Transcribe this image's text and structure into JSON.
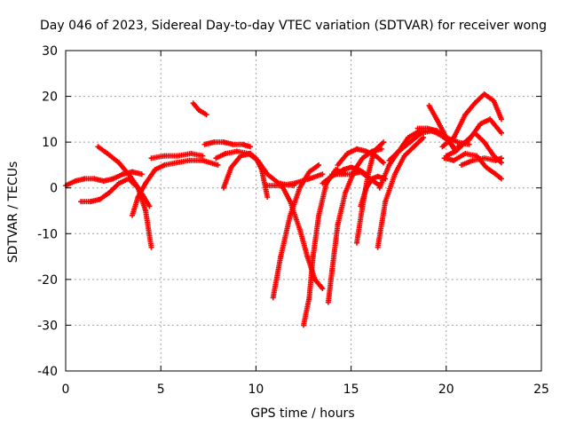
{
  "chart_data": {
    "type": "scatter",
    "title": "Day 046 of 2023, Sidereal Day-to-day VTEC variation (SDTVAR) for receiver wong",
    "xlabel": "GPS time / hours",
    "ylabel": "SDTVAR / TECUs",
    "xlim": [
      0,
      25
    ],
    "ylim": [
      -40,
      30
    ],
    "xticks": [
      0,
      5,
      10,
      15,
      20,
      25
    ],
    "yticks": [
      -40,
      -30,
      -20,
      -10,
      0,
      10,
      20,
      30
    ],
    "grid": true,
    "marker": "+",
    "color": "#ff0000",
    "series": [
      {
        "name": "s1",
        "x": [
          0.0,
          0.5,
          1.0,
          1.5,
          2.0,
          2.5,
          3.0,
          3.5,
          4.0
        ],
        "y": [
          0.5,
          1.5,
          2.0,
          2.0,
          1.5,
          2.0,
          3.0,
          3.5,
          3.0
        ]
      },
      {
        "name": "s2",
        "x": [
          0.8,
          1.3,
          1.8,
          2.3,
          2.8,
          3.3,
          3.8,
          4.2,
          4.5
        ],
        "y": [
          -3.0,
          -3.0,
          -2.5,
          -1.0,
          1.0,
          2.0,
          0.0,
          -5.0,
          -13.0
        ]
      },
      {
        "name": "s3",
        "x": [
          1.7,
          2.2,
          2.8,
          3.4,
          3.9,
          4.4
        ],
        "y": [
          9.0,
          7.5,
          5.5,
          2.5,
          -0.5,
          -4.0
        ]
      },
      {
        "name": "s4",
        "x": [
          3.5,
          3.8,
          4.2,
          4.7,
          5.2,
          5.8,
          6.5,
          7.2,
          8.0
        ],
        "y": [
          -6.0,
          -2.0,
          1.0,
          4.0,
          5.0,
          5.5,
          6.0,
          6.0,
          5.0
        ]
      },
      {
        "name": "s5",
        "x": [
          4.5,
          5.2,
          5.9,
          6.6,
          7.2
        ],
        "y": [
          6.5,
          7.0,
          7.0,
          7.5,
          7.0
        ]
      },
      {
        "name": "s6",
        "x": [
          6.7,
          7.0,
          7.4
        ],
        "y": [
          18.5,
          17.0,
          16.0
        ]
      },
      {
        "name": "s7",
        "x": [
          7.3,
          7.8,
          8.3,
          8.8,
          9.3,
          9.7
        ],
        "y": [
          9.5,
          10.0,
          10.0,
          9.5,
          9.5,
          9.0
        ]
      },
      {
        "name": "s8",
        "x": [
          8.3,
          8.7,
          9.2,
          9.7,
          10.0,
          10.3,
          10.6
        ],
        "y": [
          0.0,
          4.5,
          7.0,
          7.5,
          6.5,
          4.0,
          -2.0
        ]
      },
      {
        "name": "s9",
        "x": [
          7.9,
          8.4,
          9.0,
          9.6,
          10.1,
          10.6,
          11.2,
          12.0
        ],
        "y": [
          6.5,
          7.5,
          8.0,
          7.5,
          6.0,
          3.0,
          1.0,
          0.5
        ]
      },
      {
        "name": "s10",
        "x": [
          10.6,
          11.3,
          12.0,
          12.8,
          13.5
        ],
        "y": [
          0.5,
          0.5,
          1.0,
          2.0,
          3.0
        ]
      },
      {
        "name": "s11",
        "x": [
          10.9,
          11.3,
          11.8,
          12.3,
          12.8,
          13.3
        ],
        "y": [
          -24.0,
          -15.0,
          -6.0,
          0.0,
          3.5,
          5.0
        ]
      },
      {
        "name": "s12",
        "x": [
          11.3,
          11.8,
          12.3,
          12.7,
          13.1,
          13.5
        ],
        "y": [
          1.0,
          -3.0,
          -9.0,
          -15.0,
          -20.0,
          -22.0
        ]
      },
      {
        "name": "s13",
        "x": [
          12.5,
          12.8,
          13.0,
          13.3,
          13.7,
          14.2,
          14.7
        ],
        "y": [
          -30.0,
          -24.0,
          -15.0,
          -6.0,
          1.0,
          4.0,
          3.0
        ]
      },
      {
        "name": "s14",
        "x": [
          13.8,
          14.0,
          14.3,
          14.7,
          15.2,
          15.6,
          16.1,
          16.6
        ],
        "y": [
          -25.0,
          -18.0,
          -8.0,
          -1.0,
          4.0,
          6.5,
          8.0,
          8.5
        ]
      },
      {
        "name": "s15",
        "x": [
          13.5,
          13.8,
          14.2,
          14.6,
          15.0,
          15.4,
          15.8
        ],
        "y": [
          1.0,
          2.0,
          3.0,
          4.0,
          4.5,
          4.0,
          3.0
        ]
      },
      {
        "name": "s16",
        "x": [
          14.0,
          14.5,
          15.0,
          15.5,
          16.0,
          16.5
        ],
        "y": [
          3.0,
          3.0,
          3.0,
          3.5,
          2.0,
          0.5
        ]
      },
      {
        "name": "s17",
        "x": [
          14.3,
          14.8,
          15.3,
          15.8,
          16.3,
          16.7
        ],
        "y": [
          5.0,
          7.5,
          8.5,
          8.0,
          7.0,
          5.5
        ]
      },
      {
        "name": "s18",
        "x": [
          15.3,
          15.6,
          15.9,
          16.2,
          16.7
        ],
        "y": [
          -12.0,
          -4.0,
          3.0,
          8.0,
          10.0
        ]
      },
      {
        "name": "s19",
        "x": [
          15.5,
          15.8,
          16.1,
          16.4,
          16.8
        ],
        "y": [
          -4.0,
          0.0,
          2.0,
          2.5,
          2.0
        ]
      },
      {
        "name": "s20",
        "x": [
          16.4,
          16.8,
          17.3,
          17.8,
          18.3,
          18.8
        ],
        "y": [
          -13.0,
          -3.0,
          3.0,
          7.0,
          9.0,
          11.0
        ]
      },
      {
        "name": "s21",
        "x": [
          16.5,
          17.0,
          17.5,
          18.0,
          18.6,
          19.2,
          19.8
        ],
        "y": [
          0.0,
          5.0,
          8.0,
          11.0,
          12.5,
          12.5,
          11.5
        ]
      },
      {
        "name": "s22",
        "x": [
          17.0,
          17.5,
          18.1,
          18.7,
          19.3,
          19.9,
          20.4
        ],
        "y": [
          6.0,
          8.0,
          10.0,
          12.0,
          12.5,
          11.0,
          9.0
        ]
      },
      {
        "name": "s23",
        "x": [
          18.5,
          19.0,
          19.5,
          20.0,
          20.6,
          21.2
        ],
        "y": [
          13.0,
          13.0,
          12.5,
          11.0,
          10.0,
          9.5
        ]
      },
      {
        "name": "s24",
        "x": [
          19.1,
          19.5,
          20.0,
          20.5
        ],
        "y": [
          18.0,
          15.0,
          11.0,
          8.0
        ]
      },
      {
        "name": "s25",
        "x": [
          19.8,
          20.4,
          21.0,
          21.5,
          22.0,
          22.5,
          22.9
        ],
        "y": [
          9.0,
          11.0,
          16.0,
          18.5,
          20.5,
          19.0,
          15.0
        ]
      },
      {
        "name": "s26",
        "x": [
          20.6,
          21.2,
          21.8,
          22.3,
          22.9
        ],
        "y": [
          9.0,
          10.5,
          14.0,
          15.0,
          12.0
        ]
      },
      {
        "name": "s27",
        "x": [
          20.0,
          20.5,
          21.0,
          21.5,
          22.0,
          22.5,
          22.9
        ],
        "y": [
          7.0,
          8.0,
          10.0,
          12.0,
          10.0,
          7.0,
          5.5
        ]
      },
      {
        "name": "s28",
        "x": [
          20.8,
          21.4,
          22.0,
          22.6,
          22.9
        ],
        "y": [
          5.0,
          6.0,
          6.5,
          6.0,
          6.5
        ]
      },
      {
        "name": "s29",
        "x": [
          19.9,
          20.4,
          21.0,
          21.6,
          22.1,
          22.6,
          22.9
        ],
        "y": [
          6.5,
          6.0,
          7.5,
          7.0,
          4.5,
          3.0,
          2.0
        ]
      }
    ]
  }
}
